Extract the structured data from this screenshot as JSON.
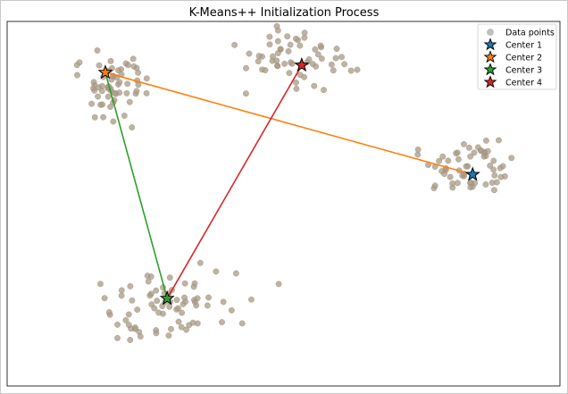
{
  "chart_data": {
    "type": "scatter",
    "title": "K-Means++ Initialization Process",
    "xlabel": "",
    "ylabel": "",
    "xlim": [
      -2.6,
      12.6
    ],
    "ylim": [
      -1.3,
      8.7
    ],
    "grid": false,
    "legend_position": "top-right",
    "colors": {
      "points": "#a89a86",
      "point_edge": "#9c8e7a",
      "center_1": "#1f77b4",
      "center_2": "#ff7f0e",
      "center_3": "#2ca02c",
      "center_4": "#d62728",
      "line_2": "#ff7f0e",
      "line_3": "#2ca02c",
      "line_4": "#d62728"
    },
    "clusters": [
      {
        "center": [
          0.2,
          7.0
        ],
        "count": 62,
        "spread": [
          0.55,
          0.45
        ]
      },
      {
        "center": [
          5.3,
          7.6
        ],
        "count": 58,
        "spread": [
          0.7,
          0.5
        ]
      },
      {
        "center": [
          10.2,
          4.8
        ],
        "count": 58,
        "spread": [
          0.75,
          0.45
        ]
      },
      {
        "center": [
          1.9,
          0.9
        ],
        "count": 75,
        "spread": [
          0.85,
          0.55
        ]
      }
    ],
    "legend": [
      {
        "label": "Data points",
        "marker": "circle",
        "color": "#b0b0b0"
      },
      {
        "label": "Center 1",
        "marker": "star",
        "color": "#1f77b4"
      },
      {
        "label": "Center 2",
        "marker": "star",
        "color": "#ff7f0e"
      },
      {
        "label": "Center 3",
        "marker": "star",
        "color": "#2ca02c"
      },
      {
        "label": "Center 4",
        "marker": "star",
        "color": "#d62728"
      }
    ],
    "centers": [
      {
        "name": "Center 1",
        "x": 10.2,
        "y": 4.5
      },
      {
        "name": "Center 2",
        "x": 0.1,
        "y": 7.3
      },
      {
        "name": "Center 3",
        "x": 1.8,
        "y": 1.1
      },
      {
        "name": "Center 4",
        "x": 5.5,
        "y": 7.5
      }
    ],
    "lines": [
      {
        "from": "Center 1",
        "to": "Center 2",
        "color": "#ff7f0e"
      },
      {
        "from": "Center 2",
        "to": "Center 3",
        "color": "#2ca02c"
      },
      {
        "from": "Center 3",
        "to": "Center 4",
        "color": "#d62728"
      }
    ]
  }
}
